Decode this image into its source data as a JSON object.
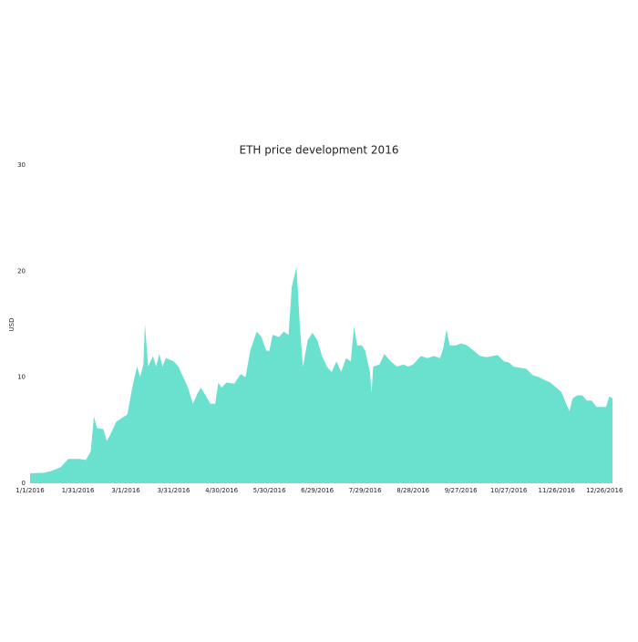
{
  "chart_data": {
    "type": "area",
    "title": "ETH price development 2016",
    "y_label": "USD",
    "color": "#6ae0cf",
    "x": [
      "1/1/2016",
      "1/10/2016",
      "1/15/2016",
      "1/20/2016",
      "1/25/2016",
      "2/1/2016",
      "2/5/2016",
      "2/8/2016",
      "2/10/2016",
      "2/12/2016",
      "2/16/2016",
      "2/18/2016",
      "2/20/2016",
      "2/24/2016",
      "2/28/2016",
      "3/2/2016",
      "3/5/2016",
      "3/8/2016",
      "3/10/2016",
      "3/12/2016",
      "3/13/2016",
      "3/15/2016",
      "3/18/2016",
      "3/20/2016",
      "3/22/2016",
      "3/24/2016",
      "3/26/2016",
      "3/31/2016",
      "4/3/2016",
      "4/6/2016",
      "4/9/2016",
      "4/12/2016",
      "4/15/2016",
      "4/17/2016",
      "4/20/2016",
      "4/23/2016",
      "4/26/2016",
      "4/28/2016",
      "4/30/2016",
      "5/3/2016",
      "5/8/2016",
      "5/12/2016",
      "5/15/2016",
      "5/18/2016",
      "5/22/2016",
      "5/25/2016",
      "5/28/2016",
      "5/30/2016",
      "6/1/2016",
      "6/5/2016",
      "6/8/2016",
      "6/11/2016",
      "6/13/2016",
      "6/16/2016",
      "6/18/2016",
      "6/20/2016",
      "6/23/2016",
      "6/26/2016",
      "6/29/2016",
      "7/2/2016",
      "7/5/2016",
      "7/8/2016",
      "7/11/2016",
      "7/14/2016",
      "7/17/2016",
      "7/20/2016",
      "7/22/2016",
      "7/24/2016",
      "7/27/2016",
      "7/29/2016",
      "8/1/2016",
      "8/2/2016",
      "8/3/2016",
      "8/7/2016",
      "8/10/2016",
      "8/14/2016",
      "8/18/2016",
      "8/22/2016",
      "8/25/2016",
      "8/28/2016",
      "9/2/2016",
      "9/6/2016",
      "9/10/2016",
      "9/14/2016",
      "9/16/2016",
      "9/18/2016",
      "9/20/2016",
      "9/24/2016",
      "9/27/2016",
      "10/1/2016",
      "10/5/2016",
      "10/9/2016",
      "10/13/2016",
      "10/17/2016",
      "10/20/2016",
      "10/24/2016",
      "10/27/2016",
      "10/30/2016",
      "11/3/2016",
      "11/7/2016",
      "11/11/2016",
      "11/15/2016",
      "11/19/2016",
      "11/22/2016",
      "11/26/2016",
      "11/29/2016",
      "12/2/2016",
      "12/4/2016",
      "12/6/2016",
      "12/9/2016",
      "12/12/2016",
      "12/15/2016",
      "12/18/2016",
      "12/21/2016",
      "12/24/2016",
      "12/27/2016",
      "12/29/2016",
      "12/31/2016"
    ],
    "values": [
      0.95,
      1.0,
      1.2,
      1.5,
      2.3,
      2.3,
      2.2,
      3.0,
      6.3,
      5.2,
      5.1,
      4.0,
      4.5,
      5.8,
      6.2,
      6.5,
      9.0,
      11.0,
      10.0,
      11.2,
      15.0,
      11.0,
      12.0,
      11.0,
      12.2,
      11.0,
      11.8,
      11.5,
      11.0,
      10.0,
      9.0,
      7.5,
      8.5,
      9.0,
      8.3,
      7.5,
      7.5,
      9.5,
      9.0,
      9.5,
      9.4,
      10.3,
      10.0,
      12.5,
      14.3,
      13.8,
      12.5,
      12.5,
      14.0,
      13.8,
      14.3,
      14.0,
      18.5,
      20.4,
      15.0,
      11.0,
      13.5,
      14.2,
      13.5,
      12.0,
      11.0,
      10.5,
      11.5,
      10.5,
      11.8,
      11.5,
      14.8,
      13.0,
      13.0,
      12.5,
      10.5,
      8.5,
      11.0,
      11.2,
      12.2,
      11.5,
      11.0,
      11.2,
      11.0,
      11.2,
      12.0,
      11.8,
      12.0,
      11.8,
      12.8,
      14.5,
      13.0,
      13.0,
      13.2,
      13.0,
      12.5,
      12.0,
      11.9,
      12.0,
      12.1,
      11.5,
      11.4,
      11.0,
      10.9,
      10.8,
      10.2,
      10.0,
      9.7,
      9.5,
      9.0,
      8.6,
      7.5,
      6.8,
      8.0,
      8.3,
      8.3,
      7.8,
      7.8,
      7.2,
      7.2,
      7.2,
      8.2,
      8.0
    ],
    "xlim": [
      "1/1/2016",
      "12/31/2016"
    ],
    "xticks": [
      "1/1/2016",
      "1/31/2016",
      "3/1/2016",
      "3/31/2016",
      "4/30/2016",
      "5/30/2016",
      "6/29/2016",
      "7/29/2016",
      "8/28/2016",
      "9/27/2016",
      "10/27/2016",
      "11/26/2016",
      "12/26/2016"
    ],
    "ylim": [
      0,
      30
    ],
    "yticks": [
      0,
      10,
      20,
      30
    ],
    "grid": false
  }
}
